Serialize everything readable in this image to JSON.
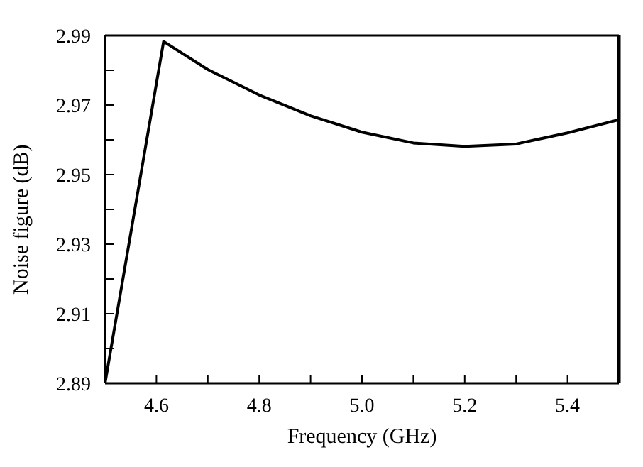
{
  "chart_data": {
    "type": "line",
    "xlabel": "Frequency (GHz)",
    "ylabel": "Noise figure (dB)",
    "x": [
      4.5,
      4.614,
      4.7,
      4.8,
      4.9,
      5.0,
      5.1,
      5.2,
      5.3,
      5.4,
      5.5
    ],
    "series": [
      {
        "color": "#000000",
        "values": [
          2.89,
          2.9883,
          2.9802,
          2.9729,
          2.9669,
          2.9622,
          2.9591,
          2.9581,
          2.9588,
          2.962,
          2.9658
        ]
      }
    ],
    "xlim": [
      4.5,
      5.5
    ],
    "xticks": [
      {
        "value": 4.5,
        "label": null
      },
      4.6,
      {
        "value": 4.7,
        "label": null
      },
      4.8,
      {
        "value": 4.9,
        "label": null
      },
      "5.0",
      {
        "value": 5.1,
        "label": null
      },
      5.2,
      {
        "value": 5.3,
        "label": null
      },
      5.4,
      {
        "value": 5.5,
        "label": null
      }
    ],
    "ylim": [
      2.89,
      2.99
    ],
    "yticks": [
      2.89,
      {
        "value": 2.9,
        "label": null
      },
      2.91,
      {
        "value": 2.92,
        "label": null
      },
      2.93,
      {
        "value": 2.94,
        "label": null
      },
      2.95,
      {
        "value": 2.96,
        "label": null
      },
      2.97,
      {
        "value": 2.98,
        "label": null
      },
      2.99
    ],
    "grid": false,
    "legend": false,
    "marker": "none",
    "line_style": "solid"
  }
}
